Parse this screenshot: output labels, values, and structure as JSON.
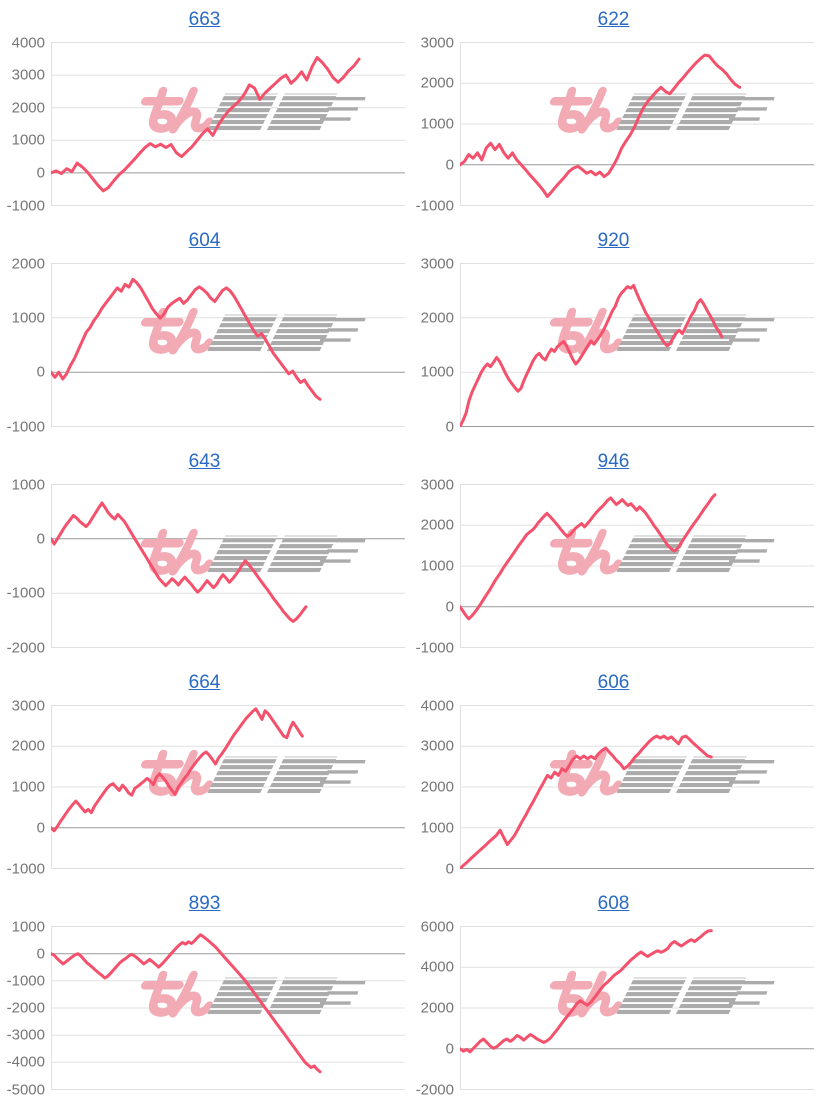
{
  "style": {
    "background": "#ffffff",
    "line_color": "#f4516c",
    "title_link_color": "#2a6ac2",
    "axis_label_color": "#767676",
    "grid_color": "#e0e0e0",
    "zero_line_color": "#9a9a9a",
    "watermark_pink": "#f2aab4",
    "watermark_gray": "#ababab"
  },
  "watermark": {
    "text": "みんレポ",
    "part1": "みん",
    "part2": "レポ"
  },
  "chart_data": [
    {
      "type": "line",
      "title": "663",
      "ymin": -1000,
      "ymax": 4000,
      "ystep": 1000,
      "grid": true,
      "xlabel": "",
      "ylabel": "",
      "width_fraction": 0.87,
      "values": [
        0,
        60,
        -20,
        130,
        40,
        300,
        180,
        20,
        -180,
        -380,
        -550,
        -450,
        -250,
        -60,
        80,
        250,
        420,
        600,
        780,
        900,
        800,
        880,
        780,
        870,
        620,
        500,
        650,
        800,
        1000,
        1200,
        1350,
        1150,
        1450,
        1700,
        1900,
        2050,
        2200,
        2400,
        2700,
        2600,
        2250,
        2450,
        2600,
        2750,
        2900,
        3000,
        2750,
        2900,
        3100,
        2850,
        3250,
        3540,
        3380,
        3180,
        2930,
        2780,
        2930,
        3130,
        3280,
        3490
      ]
    },
    {
      "type": "line",
      "title": "622",
      "ymin": -1000,
      "ymax": 3000,
      "ystep": 1000,
      "grid": true,
      "xlabel": "",
      "ylabel": "",
      "width_fraction": 0.79,
      "values": [
        0,
        80,
        250,
        160,
        290,
        120,
        410,
        530,
        370,
        500,
        300,
        160,
        290,
        120,
        0,
        -120,
        -250,
        -370,
        -490,
        -620,
        -780,
        -660,
        -530,
        -410,
        -290,
        -160,
        -80,
        -40,
        -120,
        -210,
        -160,
        -250,
        -180,
        -290,
        -210,
        -40,
        160,
        410,
        580,
        740,
        940,
        1190,
        1400,
        1560,
        1680,
        1800,
        1900,
        1800,
        1740,
        1870,
        2010,
        2130,
        2260,
        2380,
        2500,
        2600,
        2690,
        2670,
        2540,
        2420,
        2340,
        2230,
        2090,
        1970,
        1900
      ]
    },
    {
      "type": "line",
      "title": "604",
      "ymin": -1000,
      "ymax": 2000,
      "ystep": 1000,
      "grid": true,
      "xlabel": "",
      "ylabel": "",
      "width_fraction": 0.76,
      "values": [
        0,
        -95,
        0,
        -125,
        -30,
        125,
        250,
        410,
        570,
        730,
        820,
        950,
        1045,
        1170,
        1265,
        1360,
        1455,
        1550,
        1490,
        1615,
        1565,
        1710,
        1645,
        1550,
        1425,
        1300,
        1170,
        1075,
        995,
        1075,
        1200,
        1265,
        1315,
        1360,
        1265,
        1330,
        1425,
        1520,
        1570,
        1520,
        1455,
        1360,
        1300,
        1405,
        1505,
        1550,
        1490,
        1390,
        1265,
        1140,
        1010,
        885,
        760,
        665,
        710,
        600,
        475,
        350,
        255,
        160,
        65,
        -30,
        20,
        -95,
        -190,
        -145,
        -255,
        -350,
        -445,
        -500
      ]
    },
    {
      "type": "line",
      "title": "920",
      "ymin": 0,
      "ymax": 3000,
      "ystep": 1000,
      "grid": true,
      "xlabel": "",
      "ylabel": "",
      "width_fraction": 0.74,
      "values": [
        0,
        110,
        250,
        480,
        640,
        760,
        880,
        1000,
        1090,
        1150,
        1100,
        1180,
        1270,
        1200,
        1090,
        970,
        870,
        790,
        720,
        650,
        700,
        850,
        970,
        1090,
        1210,
        1300,
        1345,
        1270,
        1225,
        1335,
        1425,
        1380,
        1470,
        1520,
        1565,
        1480,
        1360,
        1240,
        1150,
        1215,
        1305,
        1395,
        1485,
        1575,
        1515,
        1590,
        1670,
        1760,
        1880,
        2000,
        2125,
        2215,
        2365,
        2455,
        2515,
        2575,
        2545,
        2595,
        2455,
        2330,
        2210,
        2090,
        2000,
        1910,
        1815,
        1725,
        1635,
        1545,
        1485,
        1530,
        1635,
        1725,
        1770,
        1710,
        1820,
        1940,
        2050,
        2135,
        2275,
        2335,
        2255,
        2150,
        2050,
        1950,
        1830,
        1750,
        1650
      ]
    },
    {
      "type": "line",
      "title": "643",
      "ymin": -2000,
      "ymax": 1000,
      "ystep": 1000,
      "grid": true,
      "xlabel": "",
      "ylabel": "",
      "width_fraction": 0.72,
      "values": [
        0,
        -95,
        0,
        95,
        190,
        275,
        350,
        430,
        385,
        320,
        275,
        225,
        290,
        385,
        480,
        575,
        660,
        575,
        480,
        415,
        365,
        450,
        385,
        320,
        225,
        130,
        30,
        -65,
        -160,
        -255,
        -350,
        -450,
        -545,
        -640,
        -735,
        -800,
        -865,
        -800,
        -735,
        -785,
        -850,
        -770,
        -705,
        -770,
        -835,
        -915,
        -980,
        -930,
        -850,
        -770,
        -835,
        -900,
        -835,
        -735,
        -660,
        -725,
        -800,
        -735,
        -660,
        -580,
        -480,
        -405,
        -470,
        -545,
        -620,
        -705,
        -785,
        -865,
        -940,
        -1025,
        -1110,
        -1185,
        -1260,
        -1345,
        -1410,
        -1475,
        -1520,
        -1475,
        -1410,
        -1330,
        -1250
      ]
    },
    {
      "type": "line",
      "title": "946",
      "ymin": -1000,
      "ymax": 3000,
      "ystep": 1000,
      "grid": true,
      "xlabel": "",
      "ylabel": "",
      "width_fraction": 0.72,
      "values": [
        0,
        -105,
        -210,
        -295,
        -230,
        -145,
        -50,
        55,
        165,
        280,
        385,
        505,
        630,
        735,
        835,
        955,
        1060,
        1160,
        1260,
        1365,
        1470,
        1570,
        1665,
        1770,
        1830,
        1880,
        1960,
        2060,
        2140,
        2220,
        2290,
        2220,
        2140,
        2060,
        1975,
        1880,
        1795,
        1730,
        1770,
        1855,
        1935,
        1990,
        2040,
        1960,
        2040,
        2125,
        2220,
        2305,
        2385,
        2450,
        2530,
        2615,
        2670,
        2590,
        2510,
        2565,
        2630,
        2550,
        2485,
        2530,
        2450,
        2370,
        2450,
        2385,
        2305,
        2205,
        2100,
        1990,
        1895,
        1795,
        1690,
        1585,
        1485,
        1420,
        1365,
        1420,
        1525,
        1635,
        1745,
        1855,
        1960,
        2060,
        2155,
        2260,
        2370,
        2465,
        2565,
        2670,
        2750
      ]
    },
    {
      "type": "line",
      "title": "664",
      "ymin": -1000,
      "ymax": 3000,
      "ystep": 1000,
      "grid": true,
      "xlabel": "",
      "ylabel": "",
      "width_fraction": 0.71,
      "values": [
        0,
        -75,
        25,
        150,
        260,
        370,
        475,
        570,
        655,
        570,
        475,
        390,
        450,
        370,
        530,
        640,
        750,
        860,
        965,
        1045,
        1080,
        995,
        915,
        1045,
        965,
        855,
        800,
        965,
        1020,
        1080,
        1145,
        1210,
        1145,
        1060,
        1240,
        1325,
        1240,
        1145,
        1020,
        915,
        815,
        995,
        1100,
        1210,
        1305,
        1430,
        1535,
        1635,
        1730,
        1810,
        1860,
        1780,
        1675,
        1565,
        1715,
        1810,
        1920,
        2040,
        2165,
        2285,
        2385,
        2490,
        2595,
        2695,
        2775,
        2855,
        2920,
        2790,
        2660,
        2870,
        2800,
        2690,
        2580,
        2470,
        2360,
        2250,
        2210,
        2430,
        2590,
        2480,
        2360,
        2250
      ]
    },
    {
      "type": "line",
      "title": "606",
      "ymin": 0,
      "ymax": 4000,
      "ystep": 1000,
      "grid": true,
      "xlabel": "",
      "ylabel": "",
      "width_fraction": 0.71,
      "values": [
        0,
        80,
        160,
        245,
        330,
        410,
        490,
        570,
        655,
        735,
        815,
        940,
        760,
        590,
        700,
        815,
        980,
        1145,
        1300,
        1470,
        1630,
        1795,
        1960,
        2120,
        2285,
        2220,
        2365,
        2285,
        2450,
        2385,
        2530,
        2680,
        2760,
        2695,
        2760,
        2695,
        2750,
        2695,
        2815,
        2900,
        2955,
        2855,
        2760,
        2650,
        2570,
        2450,
        2510,
        2610,
        2730,
        2815,
        2925,
        3020,
        3120,
        3200,
        3250,
        3200,
        3250,
        3180,
        3230,
        3145,
        3060,
        3220,
        3250,
        3170,
        3080,
        3000,
        2920,
        2840,
        2760,
        2735
      ]
    },
    {
      "type": "line",
      "title": "893",
      "ymin": -5000,
      "ymax": 1000,
      "ystep": 1000,
      "grid": true,
      "xlabel": "",
      "ylabel": "",
      "width_fraction": 0.76,
      "values": [
        0,
        -50,
        -175,
        -275,
        -375,
        -300,
        -210,
        -125,
        -50,
        0,
        -85,
        -210,
        -335,
        -420,
        -520,
        -620,
        -710,
        -795,
        -895,
        -830,
        -710,
        -585,
        -460,
        -335,
        -250,
        -175,
        -85,
        -25,
        -85,
        -175,
        -275,
        -375,
        -300,
        -210,
        -300,
        -395,
        -495,
        -395,
        -275,
        -150,
        -25,
        100,
        225,
        325,
        410,
        350,
        435,
        375,
        470,
        595,
        695,
        620,
        535,
        445,
        350,
        250,
        125,
        0,
        -125,
        -250,
        -375,
        -495,
        -620,
        -745,
        -870,
        -1000,
        -1150,
        -1300,
        -1450,
        -1600,
        -1750,
        -1900,
        -2050,
        -2200,
        -2350,
        -2500,
        -2650,
        -2800,
        -2950,
        -3100,
        -3250,
        -3400,
        -3550,
        -3700,
        -3850,
        -4000,
        -4100,
        -4190,
        -4130,
        -4255,
        -4350
      ]
    },
    {
      "type": "line",
      "title": "608",
      "ymin": -2000,
      "ymax": 6000,
      "ystep": 2000,
      "grid": true,
      "xlabel": "",
      "ylabel": "",
      "width_fraction": 0.71,
      "values": [
        0,
        -120,
        -35,
        -155,
        20,
        190,
        360,
        480,
        310,
        135,
        20,
        105,
        255,
        395,
        480,
        360,
        480,
        650,
        565,
        425,
        565,
        700,
        600,
        480,
        395,
        310,
        395,
        530,
        735,
        940,
        1160,
        1385,
        1590,
        1795,
        2015,
        2240,
        2360,
        2240,
        2135,
        2275,
        2480,
        2700,
        2925,
        3130,
        3265,
        3435,
        3605,
        3725,
        3845,
        4015,
        4190,
        4360,
        4495,
        4630,
        4750,
        4630,
        4530,
        4630,
        4735,
        4805,
        4735,
        4805,
        4925,
        5145,
        5265,
        5145,
        5045,
        5145,
        5265,
        5350,
        5265,
        5385,
        5520,
        5660,
        5780,
        5800
      ]
    }
  ]
}
